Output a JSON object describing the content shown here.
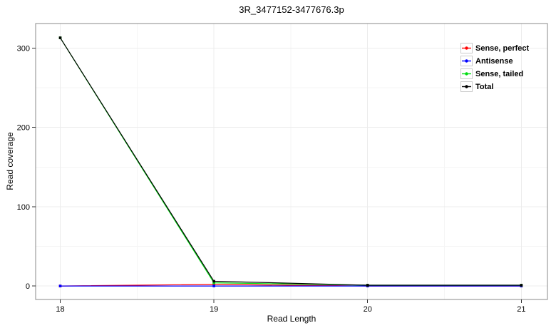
{
  "chart_data": {
    "type": "line",
    "title": "3R_3477152-3477676.3p",
    "xlabel": "Read Length",
    "ylabel": "Read coverage",
    "x": [
      18,
      19,
      20,
      21
    ],
    "series": [
      {
        "name": "Sense, perfect",
        "color": "#ff0000",
        "values": [
          0,
          2,
          0,
          0
        ]
      },
      {
        "name": "Antisense",
        "color": "#0000ff",
        "values": [
          0,
          0,
          0,
          0
        ]
      },
      {
        "name": "Sense, tailed",
        "color": "#00dd11",
        "values": [
          313,
          4,
          1,
          1
        ]
      },
      {
        "name": "Total",
        "color": "#000000",
        "values": [
          313,
          6,
          1,
          1
        ]
      }
    ],
    "xticks": [
      18,
      19,
      20,
      21
    ],
    "yticks": [
      0,
      100,
      200,
      300
    ],
    "xminor": [
      18.5,
      19.5,
      20.5
    ],
    "yminor": [
      50,
      150,
      250
    ],
    "xlim": [
      17.84,
      21.17
    ],
    "ylim": [
      -17,
      331
    ],
    "grid": true,
    "legend_position": "inside-top-right"
  },
  "colors": {
    "background": "#ffffff",
    "panel_border": "#888888",
    "grid_major": "#ececec",
    "grid_minor": "#f5f5f5",
    "tick": "#333333",
    "text": "#000000",
    "legend_key_border": "#cccccc"
  }
}
